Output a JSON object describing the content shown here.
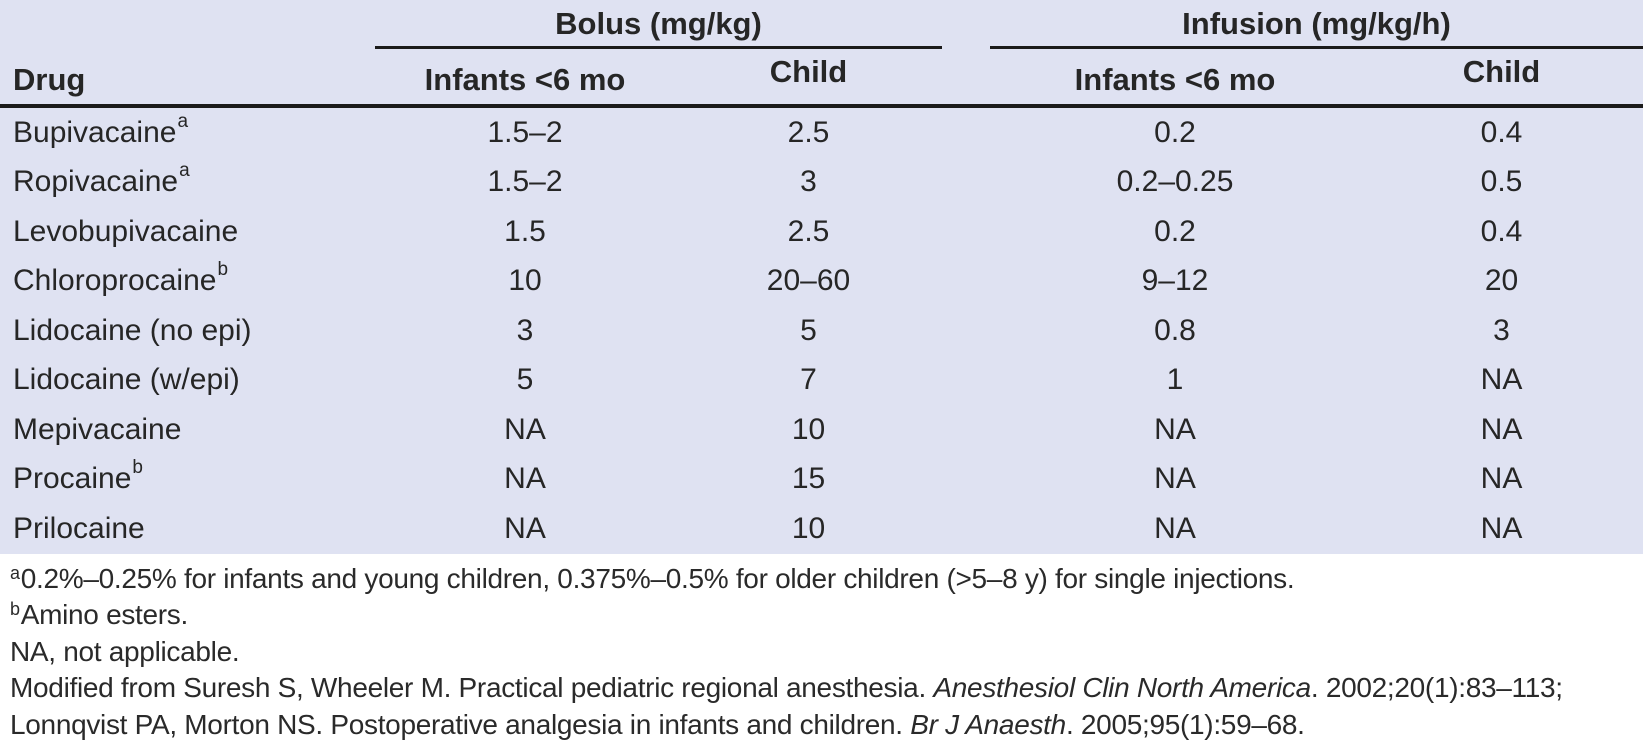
{
  "colors": {
    "table_bg": "#dfe2f2",
    "rule": "#1b1b1b",
    "text": "#262626"
  },
  "table": {
    "group_headers": {
      "bolus": "Bolus (mg/kg)",
      "infusion": "Infusion (mg/kg/h)"
    },
    "col_headers": {
      "drug": "Drug",
      "infants": "Infants <6 mo",
      "child": "Child"
    },
    "rows": [
      {
        "drug": "Bupivacaine",
        "sup": "a",
        "bolus_infants": "1.5–2",
        "bolus_child": "2.5",
        "infusion_infants": "0.2",
        "infusion_child": "0.4"
      },
      {
        "drug": "Ropivacaine",
        "sup": "a",
        "bolus_infants": "1.5–2",
        "bolus_child": "3",
        "infusion_infants": "0.2–0.25",
        "infusion_child": "0.5"
      },
      {
        "drug": "Levobupivacaine",
        "bolus_infants": "1.5",
        "bolus_child": "2.5",
        "infusion_infants": "0.2",
        "infusion_child": "0.4"
      },
      {
        "drug": "Chloroprocaine",
        "sup": "b",
        "bolus_infants": "10",
        "bolus_child": "20–60",
        "infusion_infants": "9–12",
        "infusion_child": "20"
      },
      {
        "drug": "Lidocaine (no epi)",
        "bolus_infants": "3",
        "bolus_child": "5",
        "infusion_infants": "0.8",
        "infusion_child": "3"
      },
      {
        "drug": "Lidocaine (w/epi)",
        "bolus_infants": "5",
        "bolus_child": "7",
        "infusion_infants": "1",
        "infusion_child": "NA"
      },
      {
        "drug": "Mepivacaine",
        "bolus_infants": "NA",
        "bolus_child": "10",
        "infusion_infants": "NA",
        "infusion_child": "NA"
      },
      {
        "drug": "Procaine",
        "sup": "b",
        "bolus_infants": "NA",
        "bolus_child": "15",
        "infusion_infants": "NA",
        "infusion_child": "NA"
      },
      {
        "drug": "Prilocaine",
        "bolus_infants": "NA",
        "bolus_child": "10",
        "infusion_infants": "NA",
        "infusion_child": "NA"
      }
    ]
  },
  "footnotes": {
    "a": {
      "marker": "a",
      "text": "0.2%–0.25% for infants and young children, 0.375%–0.5% for older children (>5–8 y) for single injections."
    },
    "b": {
      "marker": "b",
      "text": "Amino esters."
    },
    "na": "NA, not applicable.",
    "ref1": {
      "pre": "Modified from Suresh S, Wheeler M. Practical pediatric regional anesthesia. ",
      "italic": "Anesthesiol Clin North America",
      "post": ". 2002;20(1):83–113;"
    },
    "ref2": {
      "pre": "Lonnqvist PA, Morton NS. Postoperative analgesia in infants and children. ",
      "italic": "Br J Anaesth",
      "post": ". 2005;95(1):59–68."
    }
  }
}
